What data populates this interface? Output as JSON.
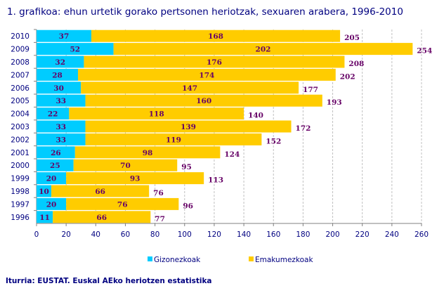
{
  "chart_data": {
    "type": "bar",
    "orientation": "horizontal",
    "stacked": true,
    "title": "1. grafikoa: ehun urtetik gorako pertsonen heriotzak, sexuaren arabera, 1996-2010",
    "categories": [
      "2010",
      "2009",
      "2008",
      "2007",
      "2006",
      "2005",
      "2004",
      "2003",
      "2002",
      "2001",
      "2000",
      "1999",
      "1998",
      "1997",
      "1996"
    ],
    "series": [
      {
        "name": "Gizonezkoak",
        "color": "#00CCFF",
        "values": [
          37,
          52,
          32,
          28,
          30,
          33,
          22,
          33,
          33,
          26,
          25,
          20,
          10,
          20,
          11
        ]
      },
      {
        "name": "Emakumezkoak",
        "color": "#FFCC00",
        "values": [
          168,
          202,
          176,
          174,
          147,
          160,
          118,
          139,
          119,
          98,
          70,
          93,
          66,
          76,
          66
        ]
      }
    ],
    "totals": [
      205,
      254,
      208,
      202,
      177,
      193,
      140,
      172,
      152,
      124,
      95,
      113,
      76,
      96,
      77
    ],
    "xlim": [
      0,
      260
    ],
    "xticks": [
      0,
      20,
      40,
      60,
      80,
      100,
      120,
      140,
      160,
      180,
      200,
      220,
      240,
      260
    ],
    "grid": true,
    "legend": "bottom",
    "label_color": "#660066"
  },
  "source": "Iturria: EUSTAT. Euskal AEko heriotzen estatistika"
}
